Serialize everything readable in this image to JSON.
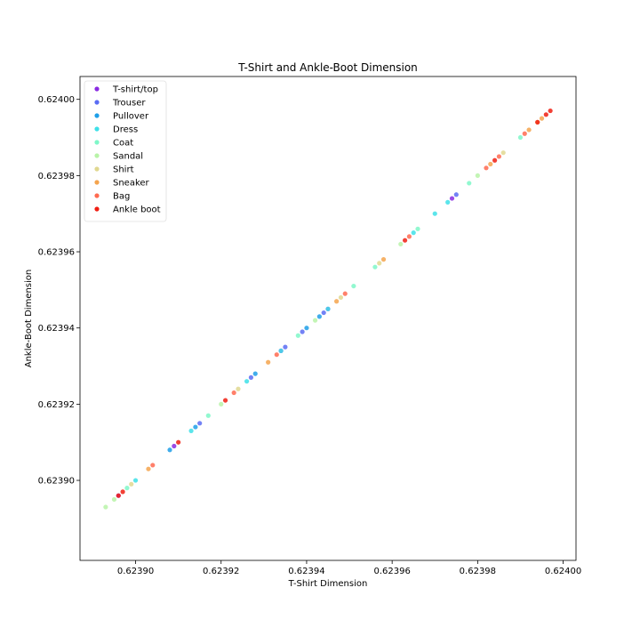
{
  "chart_data": {
    "type": "scatter",
    "title": "T-Shirt and Ankle-Boot Dimension",
    "xlabel": "T-Shirt Dimension",
    "ylabel": "Ankle-Boot Dimension",
    "xlim": [
      0.623887,
      0.624003
    ],
    "ylim": [
      0.623879,
      0.624006
    ],
    "xticks": [
      0.6239,
      0.62392,
      0.62394,
      0.62396,
      0.62398,
      0.624
    ],
    "xtick_labels": [
      "0.62390",
      "0.62392",
      "0.62394",
      "0.62396",
      "0.62398",
      "0.62400"
    ],
    "yticks": [
      0.6239,
      0.62392,
      0.62394,
      0.62396,
      0.62398,
      0.624
    ],
    "ytick_labels": [
      "0.62390",
      "0.62392",
      "0.62394",
      "0.62396",
      "0.62398",
      "0.62400"
    ],
    "grid": false,
    "legend_position": "top-left",
    "series": [
      {
        "name": "T-shirt/top",
        "color": "#8a2be2",
        "points": [
          [
            0.623896,
            0.623896
          ],
          [
            0.623909,
            0.623909
          ],
          [
            0.623934,
            0.623934
          ],
          [
            0.623945,
            0.623945
          ],
          [
            0.623974,
            0.623974
          ]
        ]
      },
      {
        "name": "Trouser",
        "color": "#5a6cf3",
        "points": [
          [
            0.623915,
            0.623915
          ],
          [
            0.623927,
            0.623927
          ],
          [
            0.623935,
            0.623935
          ],
          [
            0.623939,
            0.623939
          ],
          [
            0.623944,
            0.623944
          ],
          [
            0.623975,
            0.623975
          ]
        ]
      },
      {
        "name": "Pullover",
        "color": "#1e9fe8",
        "points": [
          [
            0.623908,
            0.623908
          ],
          [
            0.623914,
            0.623914
          ],
          [
            0.623928,
            0.623928
          ],
          [
            0.62394,
            0.62394
          ],
          [
            0.623943,
            0.623943
          ]
        ]
      },
      {
        "name": "Dress",
        "color": "#3ee0e8",
        "points": [
          [
            0.6239,
            0.6239
          ],
          [
            0.623913,
            0.623913
          ],
          [
            0.623926,
            0.623926
          ],
          [
            0.623934,
            0.623934
          ],
          [
            0.623945,
            0.623945
          ],
          [
            0.623965,
            0.623965
          ],
          [
            0.62397,
            0.62397
          ],
          [
            0.623973,
            0.623973
          ]
        ]
      },
      {
        "name": "Coat",
        "color": "#7ff7c8",
        "points": [
          [
            0.623898,
            0.623898
          ],
          [
            0.623917,
            0.623917
          ],
          [
            0.623938,
            0.623938
          ],
          [
            0.623951,
            0.623951
          ],
          [
            0.623956,
            0.623956
          ],
          [
            0.623966,
            0.623966
          ],
          [
            0.623978,
            0.623978
          ],
          [
            0.62399,
            0.62399
          ]
        ]
      },
      {
        "name": "Sandal",
        "color": "#b8f3a8",
        "points": [
          [
            0.623893,
            0.623893
          ],
          [
            0.623895,
            0.623895
          ],
          [
            0.62392,
            0.62392
          ],
          [
            0.623942,
            0.623942
          ],
          [
            0.623962,
            0.623962
          ],
          [
            0.62398,
            0.62398
          ]
        ]
      },
      {
        "name": "Shirt",
        "color": "#e0d890",
        "points": [
          [
            0.623899,
            0.623899
          ],
          [
            0.623924,
            0.623924
          ],
          [
            0.623948,
            0.623948
          ],
          [
            0.623957,
            0.623957
          ],
          [
            0.623986,
            0.623986
          ]
        ]
      },
      {
        "name": "Sneaker",
        "color": "#f4a44e",
        "points": [
          [
            0.623903,
            0.623903
          ],
          [
            0.623931,
            0.623931
          ],
          [
            0.623947,
            0.623947
          ],
          [
            0.623958,
            0.623958
          ],
          [
            0.623983,
            0.623983
          ],
          [
            0.623992,
            0.623992
          ],
          [
            0.623994,
            0.623994
          ],
          [
            0.623995,
            0.623995
          ]
        ]
      },
      {
        "name": "Bag",
        "color": "#ff6a50",
        "points": [
          [
            0.623904,
            0.623904
          ],
          [
            0.623923,
            0.623923
          ],
          [
            0.623933,
            0.623933
          ],
          [
            0.623949,
            0.623949
          ],
          [
            0.623964,
            0.623964
          ],
          [
            0.623982,
            0.623982
          ],
          [
            0.623985,
            0.623985
          ],
          [
            0.623991,
            0.623991
          ]
        ]
      },
      {
        "name": "Ankle boot",
        "color": "#f01e12",
        "points": [
          [
            0.623896,
            0.623896
          ],
          [
            0.623897,
            0.623897
          ],
          [
            0.62391,
            0.62391
          ],
          [
            0.623921,
            0.623921
          ],
          [
            0.623963,
            0.623963
          ],
          [
            0.623984,
            0.623984
          ],
          [
            0.623994,
            0.623994
          ],
          [
            0.623996,
            0.623996
          ],
          [
            0.623997,
            0.623997
          ]
        ]
      }
    ]
  }
}
